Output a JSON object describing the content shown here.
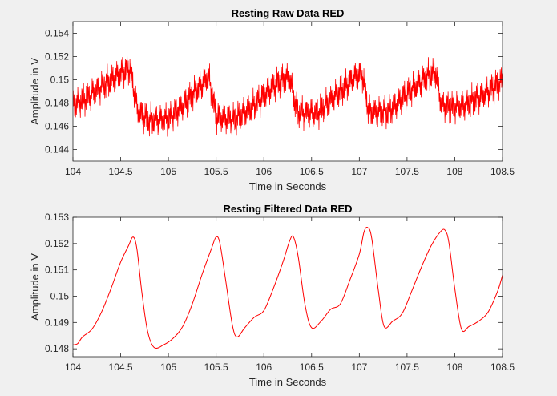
{
  "figure": {
    "background": "#f0f0f0",
    "axes_background": "#ffffff",
    "axis_color": "#262626",
    "line_color": "#ff0000"
  },
  "chart_data": [
    {
      "type": "line",
      "title": "Resting Raw Data RED",
      "xlabel": "Time in Seconds",
      "ylabel": "Amplitude in V",
      "xlim": [
        104,
        108.5
      ],
      "ylim": [
        0.143,
        0.155
      ],
      "xticks": [
        104,
        104.5,
        105,
        105.5,
        106,
        106.5,
        107,
        107.5,
        108,
        108.5
      ],
      "xtick_labels": [
        "104",
        "104.5",
        "105",
        "105.5",
        "106",
        "106.5",
        "107",
        "107.5",
        "108",
        "108.5"
      ],
      "yticks": [
        0.144,
        0.146,
        0.148,
        0.15,
        0.152,
        0.154
      ],
      "ytick_labels": [
        "0.144",
        "0.146",
        "0.148",
        "0.15",
        "0.152",
        "0.154"
      ],
      "grid": false,
      "noise_amplitude": 0.0017,
      "series": [
        {
          "color": "#ff0000",
          "envelope": {
            "x": [
              104.0,
              104.15,
              104.35,
              104.55,
              104.6,
              104.68,
              104.8,
              105.0,
              105.2,
              105.35,
              105.42,
              105.5,
              105.7,
              105.9,
              106.1,
              106.2,
              106.27,
              106.35,
              106.55,
              106.8,
              106.95,
              107.03,
              107.1,
              107.3,
              107.5,
              107.7,
              107.8,
              107.86,
              107.95,
              108.1,
              108.3,
              108.5
            ],
            "y": [
              0.1478,
              0.1485,
              0.1497,
              0.1508,
              0.151,
              0.1472,
              0.1465,
              0.1466,
              0.1482,
              0.1496,
              0.1503,
              0.1468,
              0.1466,
              0.1478,
              0.1495,
              0.15,
              0.1502,
              0.1472,
              0.1471,
              0.149,
              0.1502,
              0.1506,
              0.1472,
              0.1472,
              0.1488,
              0.1502,
              0.1507,
              0.1478,
              0.1476,
              0.1478,
              0.1487,
              0.1499
            ]
          }
        }
      ]
    },
    {
      "type": "line",
      "title": "Resting Filtered Data RED",
      "xlabel": "Time in Seconds",
      "ylabel": "Amplitude in V",
      "xlim": [
        104,
        108.5
      ],
      "ylim": [
        0.1477,
        0.153
      ],
      "xticks": [
        104,
        104.5,
        105,
        105.5,
        106,
        106.5,
        107,
        107.5,
        108,
        108.5
      ],
      "xtick_labels": [
        "104",
        "104.5",
        "105",
        "105.5",
        "106",
        "106.5",
        "107",
        "107.5",
        "108",
        "108.5"
      ],
      "yticks": [
        0.148,
        0.149,
        0.15,
        0.151,
        0.152,
        0.153
      ],
      "ytick_labels": [
        "0.148",
        "0.149",
        "0.15",
        "0.151",
        "0.152",
        "0.153"
      ],
      "grid": false,
      "series": [
        {
          "color": "#ff0000",
          "x": [
            104.0,
            104.05,
            104.1,
            104.2,
            104.3,
            104.4,
            104.5,
            104.58,
            104.63,
            104.67,
            104.72,
            104.78,
            104.85,
            104.95,
            105.05,
            105.15,
            105.25,
            105.35,
            105.45,
            105.5,
            105.54,
            105.6,
            105.67,
            105.72,
            105.8,
            105.9,
            106.0,
            106.1,
            106.2,
            106.27,
            106.31,
            106.36,
            106.43,
            106.5,
            106.6,
            106.7,
            106.8,
            106.9,
            107.0,
            107.05,
            107.09,
            107.13,
            107.2,
            107.26,
            107.35,
            107.45,
            107.55,
            107.65,
            107.75,
            107.85,
            107.9,
            107.94,
            108.0,
            108.07,
            108.15,
            108.25,
            108.35,
            108.45,
            108.5
          ],
          "y": [
            0.14815,
            0.1482,
            0.14845,
            0.14875,
            0.1494,
            0.1503,
            0.1513,
            0.1519,
            0.15225,
            0.1518,
            0.1502,
            0.1487,
            0.14805,
            0.14815,
            0.1484,
            0.14885,
            0.1497,
            0.1508,
            0.1518,
            0.15225,
            0.152,
            0.1506,
            0.1489,
            0.14845,
            0.1488,
            0.1492,
            0.14945,
            0.1503,
            0.1513,
            0.1521,
            0.15225,
            0.1515,
            0.1497,
            0.1488,
            0.14905,
            0.1495,
            0.1497,
            0.1506,
            0.1516,
            0.15245,
            0.1526,
            0.1522,
            0.1502,
            0.14885,
            0.14905,
            0.14935,
            0.1502,
            0.1511,
            0.1519,
            0.15245,
            0.1525,
            0.152,
            0.1503,
            0.14875,
            0.14885,
            0.14905,
            0.1494,
            0.1502,
            0.1508
          ]
        }
      ]
    }
  ]
}
